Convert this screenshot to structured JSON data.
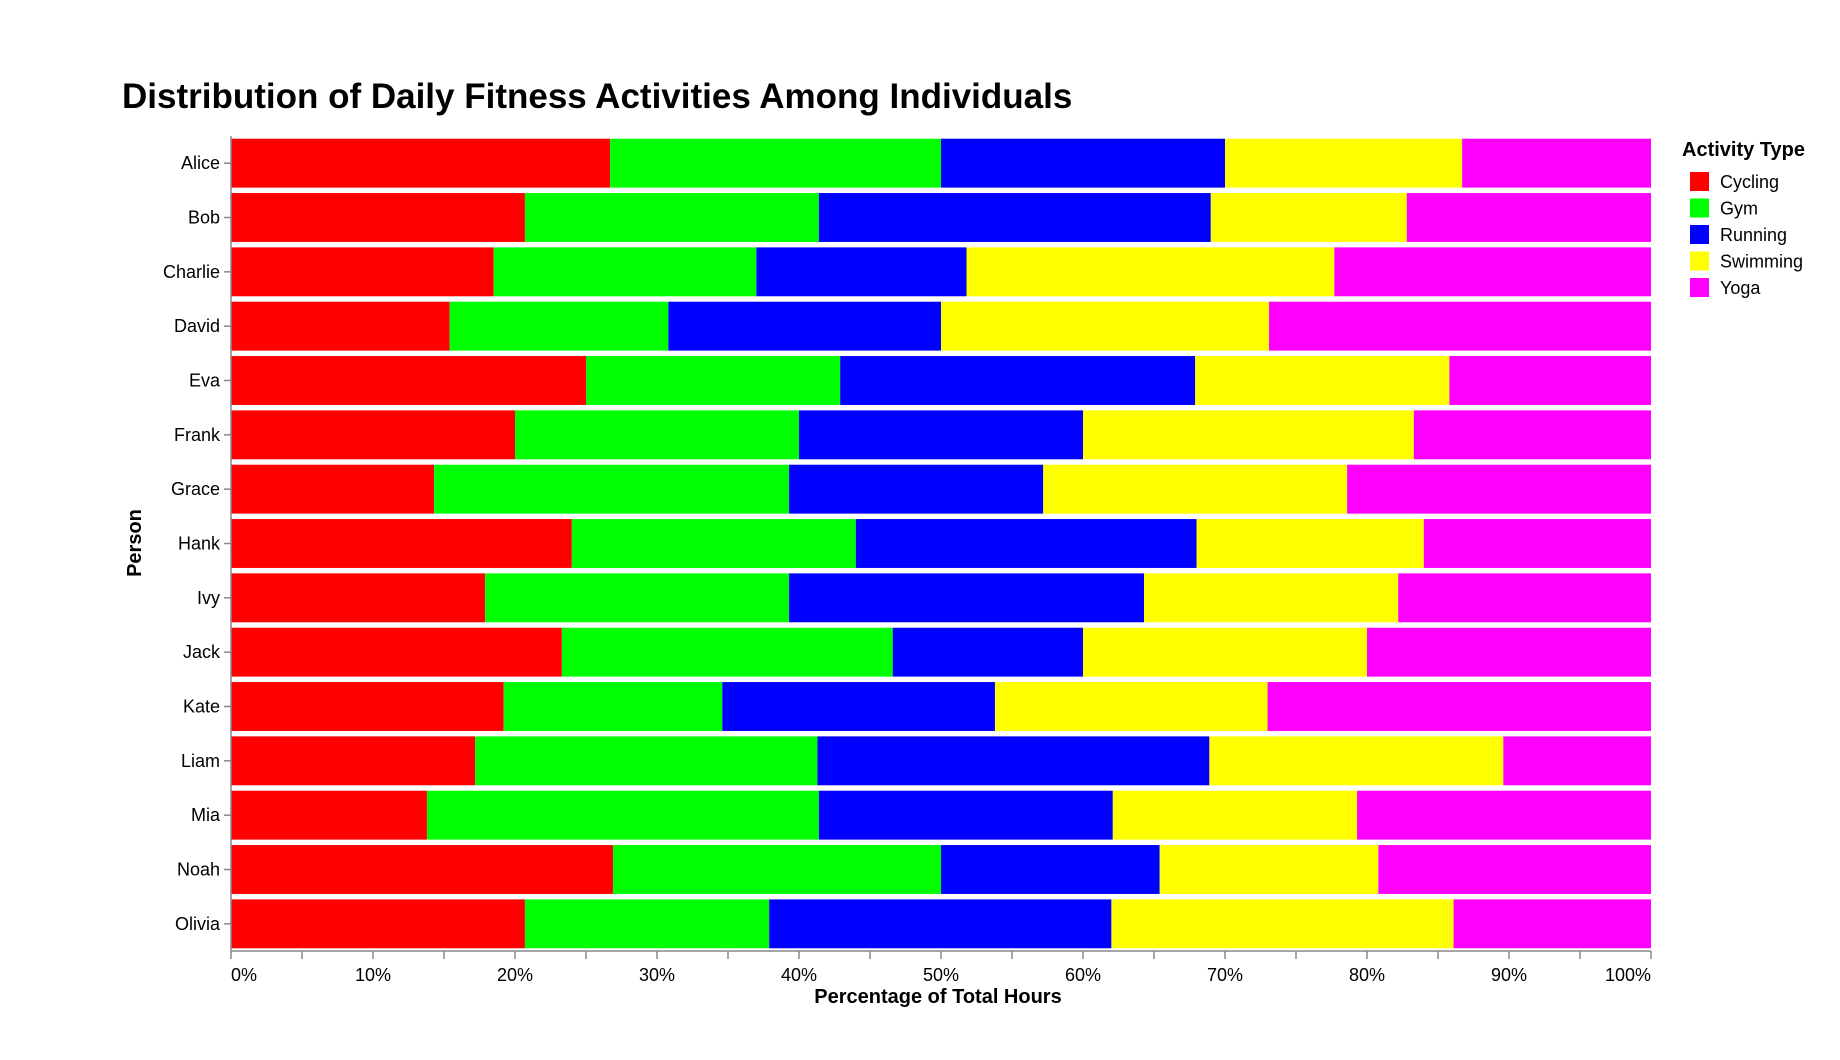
{
  "chart_data": {
    "type": "bar",
    "orientation": "horizontal",
    "stacked": "normalized",
    "title": "Distribution of Daily Fitness Activities Among Individuals",
    "xlabel": "Percentage of Total Hours",
    "ylabel": "Person",
    "xlim": [
      0,
      1
    ],
    "x_ticks": [
      "0%",
      "10%",
      "20%",
      "30%",
      "40%",
      "50%",
      "60%",
      "70%",
      "80%",
      "90%",
      "100%"
    ],
    "grid": false,
    "legend": {
      "title": "Activity Type",
      "placement": "top-right"
    },
    "categories": [
      "Alice",
      "Bob",
      "Charlie",
      "David",
      "Eva",
      "Frank",
      "Grace",
      "Hank",
      "Ivy",
      "Jack",
      "Kate",
      "Liam",
      "Mia",
      "Noah",
      "Olivia"
    ],
    "series": [
      {
        "name": "Cycling",
        "color": "#ff0000",
        "values": [
          26.7,
          20.7,
          18.5,
          15.4,
          25.0,
          20.0,
          14.3,
          24.0,
          17.9,
          23.3,
          19.2,
          17.2,
          13.8,
          26.9,
          20.7
        ]
      },
      {
        "name": "Gym",
        "color": "#00ff00",
        "values": [
          23.3,
          20.7,
          18.5,
          15.4,
          17.9,
          20.0,
          25.0,
          20.0,
          21.4,
          23.3,
          15.4,
          24.1,
          27.6,
          23.1,
          17.2
        ]
      },
      {
        "name": "Running",
        "color": "#0000ff",
        "values": [
          20.0,
          27.6,
          14.8,
          19.2,
          25.0,
          20.0,
          17.9,
          24.0,
          25.0,
          13.4,
          19.2,
          27.6,
          20.7,
          15.4,
          24.1
        ]
      },
      {
        "name": "Swimming",
        "color": "#ffff00",
        "values": [
          16.7,
          13.8,
          25.9,
          23.1,
          17.9,
          23.3,
          21.4,
          16.0,
          17.9,
          20.0,
          19.2,
          20.7,
          17.2,
          15.4,
          24.1
        ]
      },
      {
        "name": "Yoga",
        "color": "#ff00ff",
        "values": [
          13.3,
          17.2,
          22.3,
          26.9,
          14.2,
          16.7,
          21.4,
          16.0,
          17.8,
          20.0,
          27.0,
          10.4,
          20.7,
          19.2,
          13.9
        ]
      }
    ]
  }
}
